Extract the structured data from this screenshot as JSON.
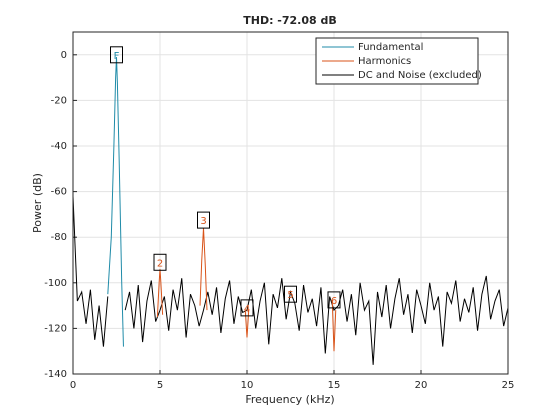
{
  "chart_data": {
    "type": "line",
    "title": "THD: -72.08 dB",
    "x_label": "Frequency (kHz)",
    "y_label": "Power (dB)",
    "xlim": [
      0,
      25
    ],
    "ylim": [
      -140,
      10
    ],
    "xticks": [
      0,
      5,
      10,
      15,
      20,
      25
    ],
    "yticks": [
      -140,
      -120,
      -100,
      -80,
      -60,
      -40,
      -20,
      0
    ],
    "grid": true,
    "legend": "northeast",
    "series": [
      {
        "name": "Fundamental",
        "color": "#1f8ba8",
        "x": [
          2.0,
          2.2,
          2.35,
          2.45,
          2.5,
          2.55,
          2.65,
          2.8,
          2.9
        ],
        "values": [
          -105,
          -80,
          -40,
          -10,
          -1,
          -12,
          -45,
          -100,
          -128
        ]
      },
      {
        "name": "Harmonics",
        "color": "#d95319",
        "x": [
          4.85,
          4.95,
          5.0,
          5.05,
          5.15,
          null,
          7.3,
          7.4,
          7.5,
          7.6,
          7.7,
          null,
          9.9,
          10.0,
          10.1,
          null,
          14.9,
          15.0,
          15.1
        ],
        "values": [
          -115,
          -100,
          -94,
          -100,
          -114,
          null,
          -110,
          -90,
          -76,
          -92,
          -112,
          null,
          -112,
          -124,
          -112,
          null,
          -108,
          -130,
          -112
        ]
      },
      {
        "name": "DC and Noise (excluded)",
        "color": "#000000",
        "x": [
          0,
          0.25,
          0.5,
          0.75,
          1,
          1.25,
          1.5,
          1.75,
          2,
          2.25,
          2.5,
          2.75,
          3,
          3.25,
          3.5,
          3.75,
          4,
          4.25,
          4.5,
          4.75,
          5,
          5.25,
          5.5,
          5.75,
          6,
          6.25,
          6.5,
          6.75,
          7,
          7.25,
          7.5,
          7.75,
          8,
          8.25,
          8.5,
          8.75,
          9,
          9.25,
          9.5,
          9.75,
          10,
          10.25,
          10.5,
          10.75,
          11,
          11.25,
          11.5,
          11.75,
          12,
          12.25,
          12.5,
          12.75,
          13,
          13.25,
          13.5,
          13.75,
          14,
          14.25,
          14.5,
          14.75,
          15,
          15.25,
          15.5,
          15.75,
          16,
          16.25,
          16.5,
          16.75,
          17,
          17.25,
          17.5,
          17.75,
          18,
          18.25,
          18.5,
          18.75,
          19,
          19.25,
          19.5,
          19.75,
          20,
          20.25,
          20.5,
          20.75,
          21,
          21.25,
          21.5,
          21.75,
          22,
          22.25,
          22.5,
          22.75,
          23,
          23.25,
          23.5,
          23.75,
          24,
          24.25,
          24.5,
          24.75,
          25
        ],
        "values": [
          -62,
          -108,
          -104,
          -118,
          -103,
          -125,
          -110,
          -128,
          -106,
          null,
          null,
          null,
          -112,
          -104,
          -120,
          -101,
          -126,
          -108,
          -99,
          -117,
          -112,
          -106,
          -121,
          -103,
          -112,
          -98,
          -124,
          -105,
          -110,
          -119,
          -112,
          -104,
          -114,
          -102,
          -122,
          -107,
          -99,
          -118,
          -106,
          -113,
          -112,
          -103,
          -120,
          -108,
          -100,
          -127,
          -105,
          -111,
          -98,
          -116,
          -104,
          -109,
          -121,
          -101,
          -113,
          -107,
          -119,
          -102,
          -131,
          -106,
          -112,
          -110,
          -103,
          -117,
          -105,
          -123,
          -100,
          -112,
          -108,
          -136,
          -104,
          -115,
          -101,
          -120,
          -107,
          -98,
          -114,
          -105,
          -122,
          -103,
          -110,
          -118,
          -100,
          -112,
          -106,
          -128,
          -104,
          -109,
          -99,
          -117,
          -107,
          -113,
          -102,
          -121,
          -105,
          -97,
          -116,
          -108,
          -103,
          -119,
          -111
        ]
      }
    ],
    "annotations": [
      {
        "label": "F",
        "x": 2.5,
        "y": 0,
        "color": "#1f8ba8"
      },
      {
        "label": "2",
        "x": 5.0,
        "y": -91,
        "color": "#d95319"
      },
      {
        "label": "3",
        "x": 7.5,
        "y": -72.5,
        "color": "#d95319"
      },
      {
        "label": "4",
        "x": 10.0,
        "y": -111,
        "color": "#d95319"
      },
      {
        "label": "5",
        "x": 12.5,
        "y": -105,
        "color": "#d95319"
      },
      {
        "label": "6",
        "x": 15.0,
        "y": -107.5,
        "color": "#d95319"
      }
    ]
  }
}
